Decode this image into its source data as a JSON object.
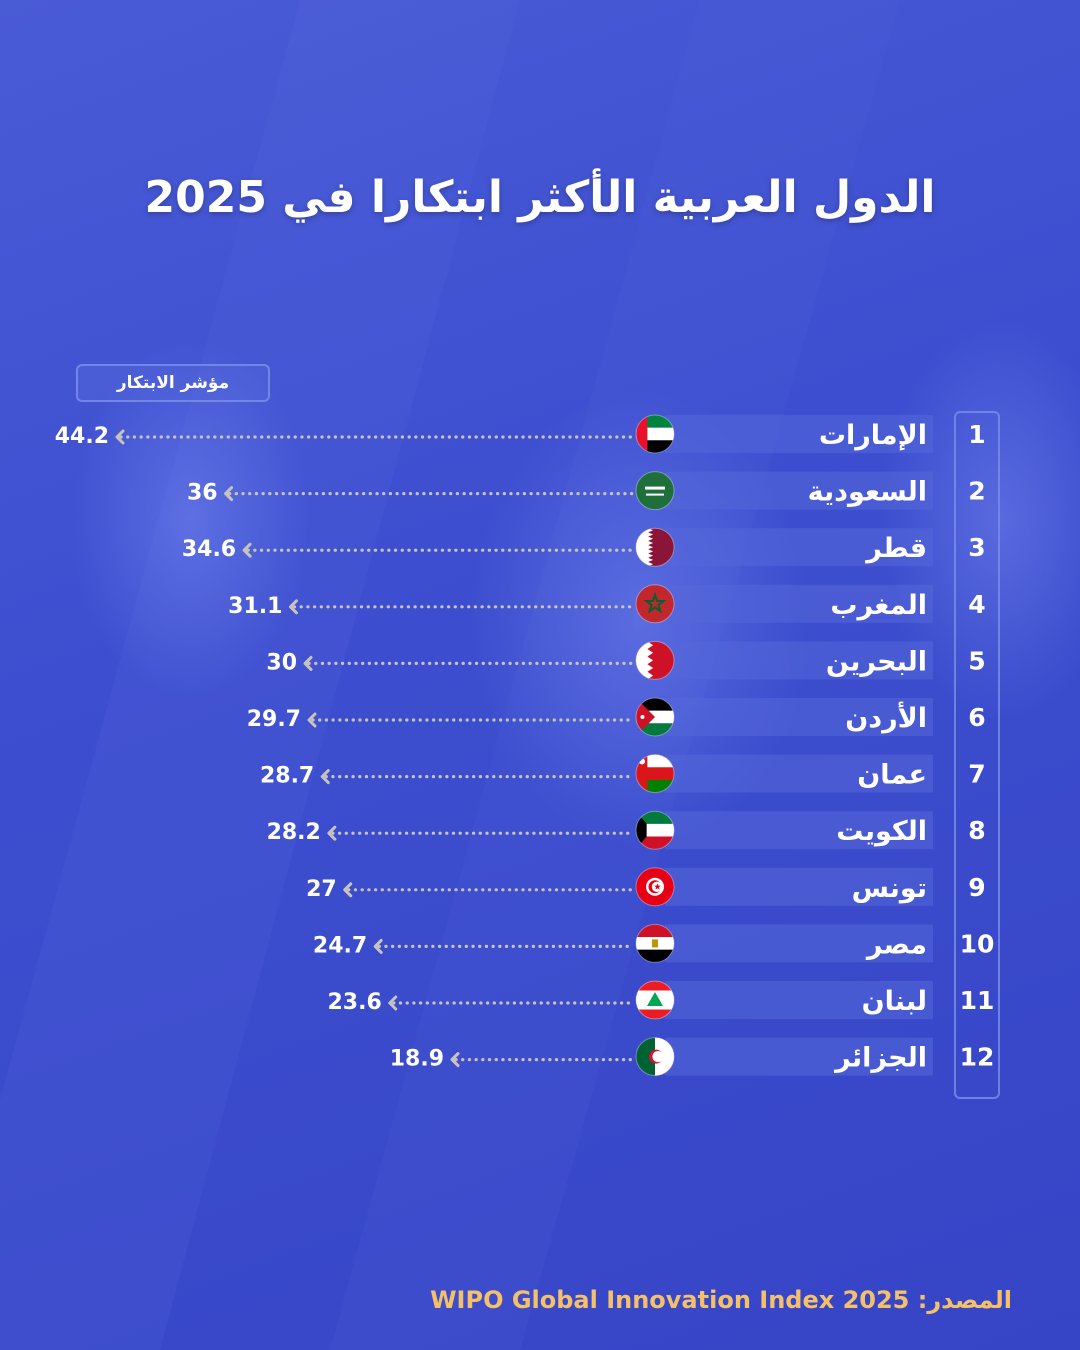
{
  "title": "الدول العربية الأكثر ابتكارا في 2025",
  "legend_label": "مؤشر الابتكار",
  "source": {
    "label": "المصدر:",
    "value": "WIPO Global Innovation Index 2025"
  },
  "colors": {
    "background": "#3d4fd0",
    "source_text": "#f5c06a",
    "dots": "#c9c3be",
    "row_band": "#5668d8"
  },
  "chart_data": {
    "type": "bar",
    "title": "الدول العربية الأكثر ابتكارا في 2025",
    "value_label": "مؤشر الابتكار",
    "rows": [
      {
        "rank": "1",
        "country": "الإمارات",
        "value": 44.2,
        "label": "44.2",
        "flag": "uae"
      },
      {
        "rank": "2",
        "country": "السعودية",
        "value": 36,
        "label": "36",
        "flag": "saudi"
      },
      {
        "rank": "3",
        "country": "قطر",
        "value": 34.6,
        "label": "34.6",
        "flag": "qatar"
      },
      {
        "rank": "4",
        "country": "المغرب",
        "value": 31.1,
        "label": "31.1",
        "flag": "morocco"
      },
      {
        "rank": "5",
        "country": "البحرين",
        "value": 30,
        "label": "30",
        "flag": "bahrain"
      },
      {
        "rank": "6",
        "country": "الأردن",
        "value": 29.7,
        "label": "29.7",
        "flag": "jordan"
      },
      {
        "rank": "7",
        "country": "عمان",
        "value": 28.7,
        "label": "28.7",
        "flag": "oman"
      },
      {
        "rank": "8",
        "country": "الكويت",
        "value": 28.2,
        "label": "28.2",
        "flag": "kuwait"
      },
      {
        "rank": "9",
        "country": "تونس",
        "value": 27,
        "label": "27",
        "flag": "tunisia"
      },
      {
        "rank": "10",
        "country": "مصر",
        "value": 24.7,
        "label": "24.7",
        "flag": "egypt"
      },
      {
        "rank": "11",
        "country": "لبنان",
        "value": 23.6,
        "label": "23.6",
        "flag": "lebanon"
      },
      {
        "rank": "12",
        "country": "الجزائر",
        "value": 18.9,
        "label": "18.9",
        "flag": "algeria"
      }
    ]
  }
}
